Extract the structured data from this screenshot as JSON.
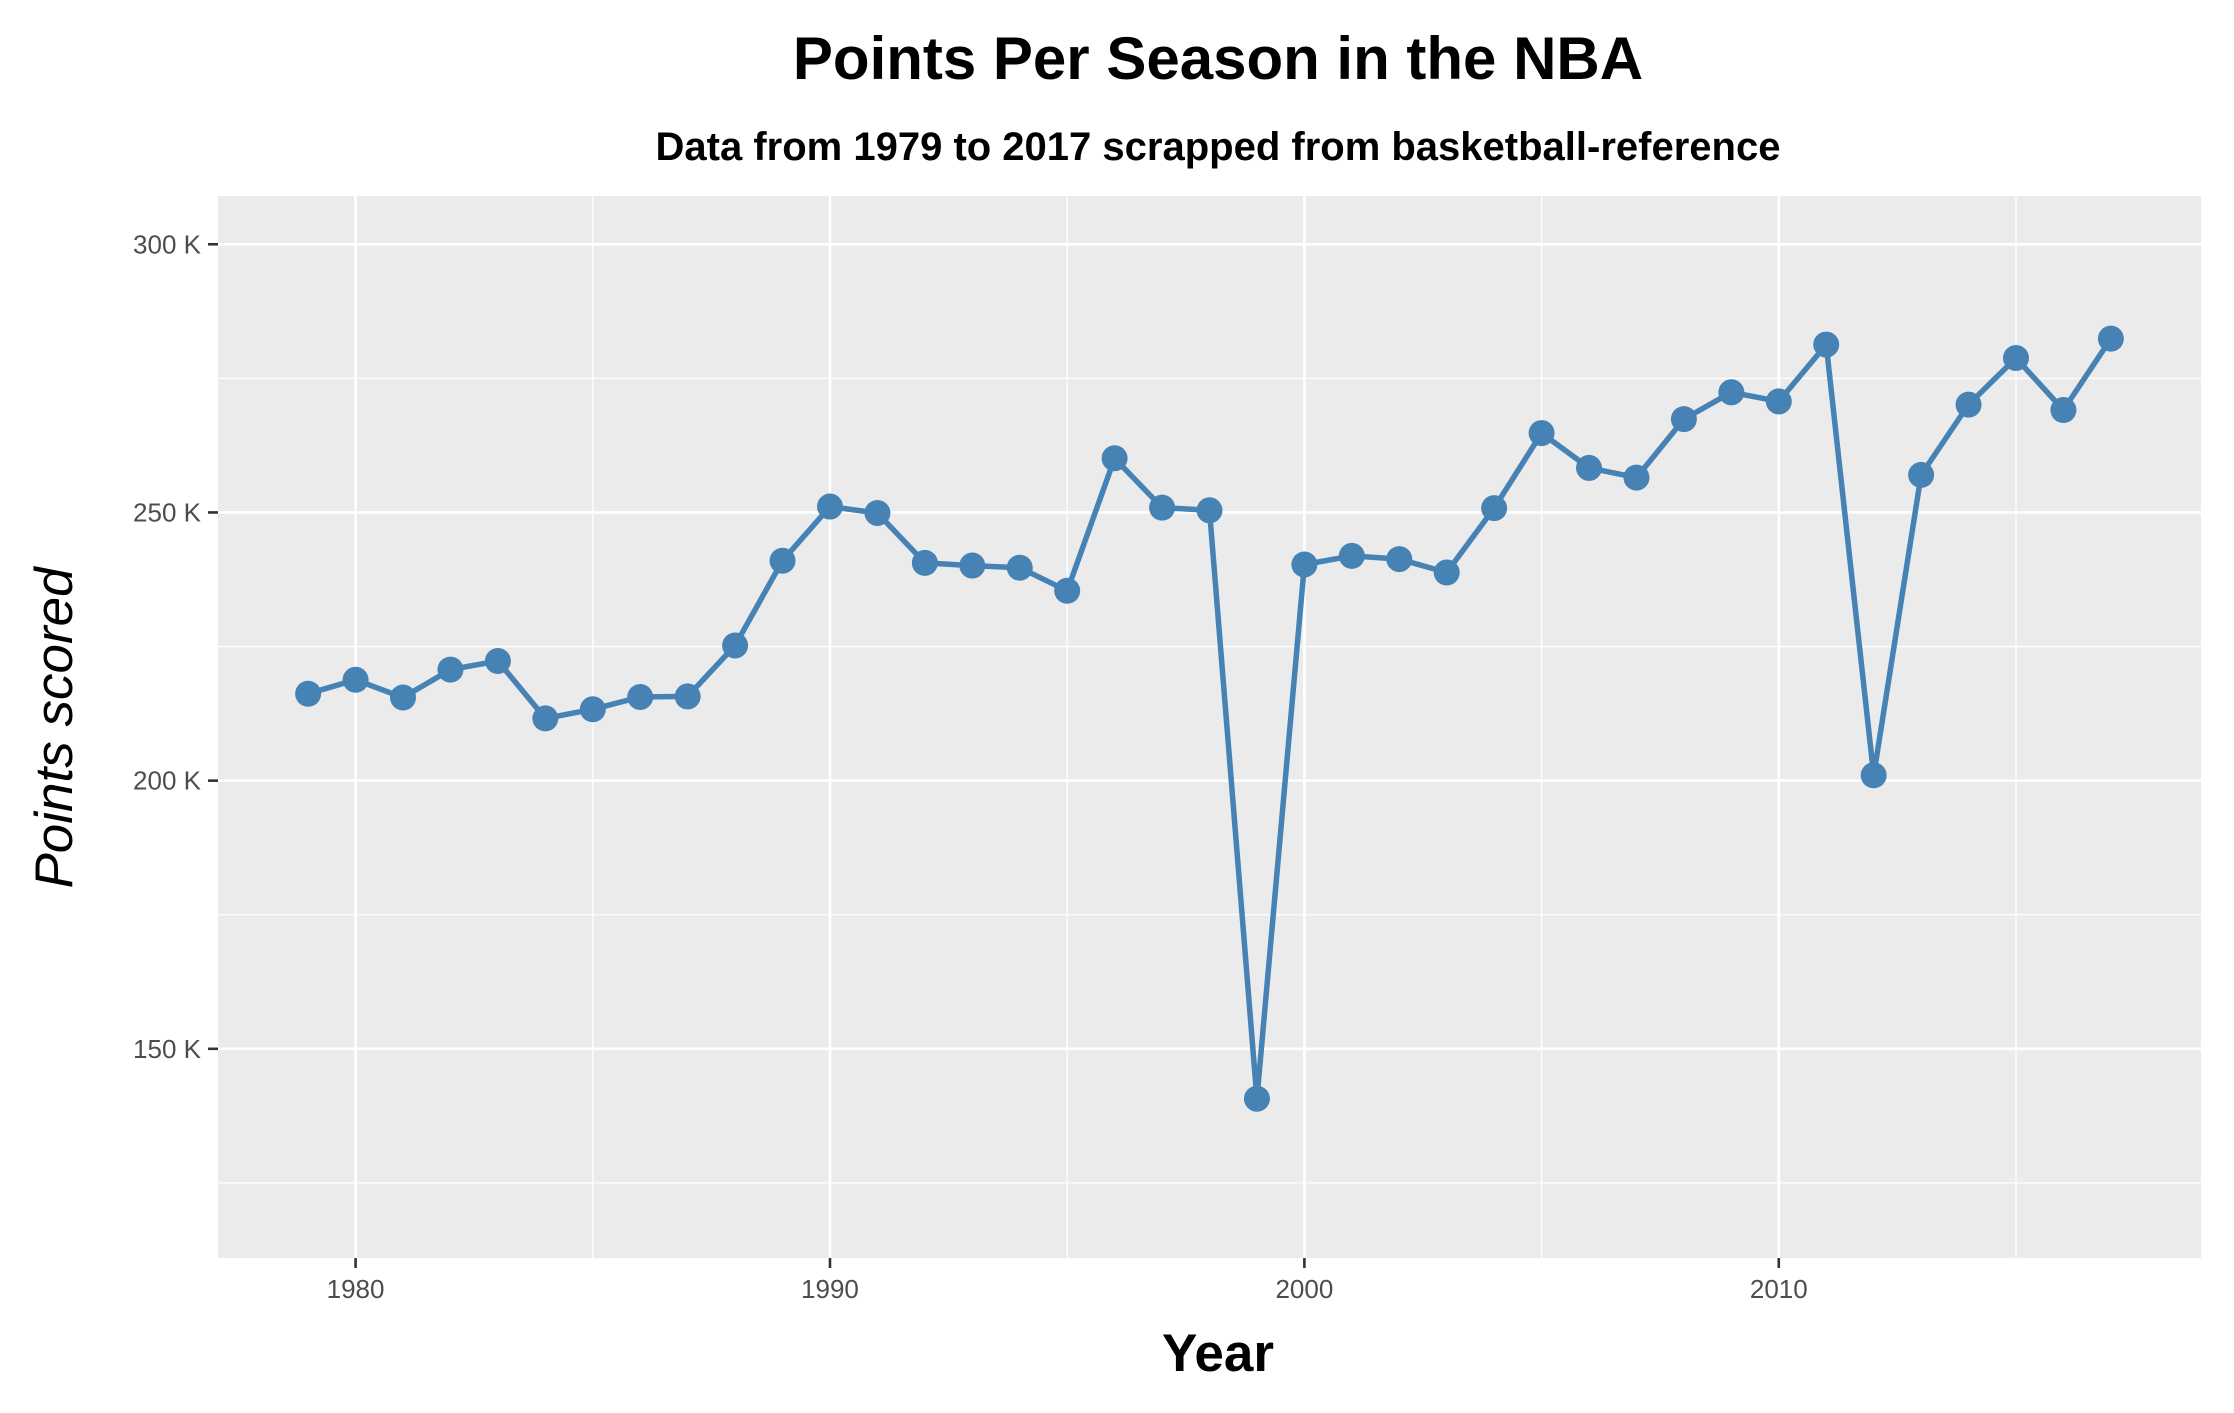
{
  "chart_data": {
    "type": "line",
    "title": "Points Per Season in the NBA",
    "subtitle": "Data from 1979 to 2017 scrapped from basketball-reference",
    "xlabel": "Year",
    "ylabel": "Points scored",
    "xlim": [
      1977.1,
      2018.9
    ],
    "ylim": [
      111000,
      309000
    ],
    "x_ticks": [
      1980,
      1990,
      2000,
      2010
    ],
    "x_tick_labels": [
      "1980",
      "1990",
      "2000",
      "2010"
    ],
    "y_ticks": [
      150000,
      200000,
      250000,
      300000
    ],
    "y_tick_labels": [
      "150 K",
      "200 K",
      "250 K",
      "300 K"
    ],
    "grid": true,
    "legend": "none",
    "series_color": "#4682B4",
    "panel_color": "#EBEBEB",
    "series": [
      {
        "x": [
          1979,
          1980,
          1981,
          1982,
          1983,
          1984,
          1985,
          1986,
          1987,
          1988,
          1989,
          1990,
          1991,
          1992,
          1993,
          1994,
          1995,
          1996,
          1997,
          1998,
          1999,
          2000,
          2001,
          2002,
          2003,
          2004,
          2005,
          2006,
          2007,
          2008,
          2009,
          2010,
          2011,
          2012,
          2013,
          2014,
          2015,
          2016,
          2017
        ],
        "values": [
          216200,
          218800,
          215500,
          220700,
          222300,
          211600,
          213300,
          215600,
          215700,
          225200,
          241000,
          251100,
          249900,
          240600,
          240100,
          239700,
          235400,
          260100,
          250900,
          250400,
          140700,
          240300,
          241900,
          241300,
          238800,
          250800,
          264800,
          258300,
          256500,
          267400,
          272400,
          270700,
          281300,
          201000,
          257000,
          270100,
          278800,
          269100,
          282400
        ]
      }
    ]
  }
}
